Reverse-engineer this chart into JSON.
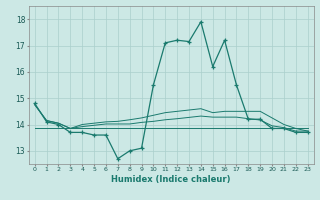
{
  "xlabel": "Humidex (Indice chaleur)",
  "background_color": "#cce8e5",
  "grid_color": "#aacfcc",
  "line_color": "#1a7a6e",
  "x": [
    0,
    1,
    2,
    3,
    4,
    5,
    6,
    7,
    8,
    9,
    10,
    11,
    12,
    13,
    14,
    15,
    16,
    17,
    18,
    19,
    20,
    21,
    22,
    23
  ],
  "main_line": [
    14.8,
    14.1,
    14.0,
    13.7,
    13.7,
    13.6,
    13.6,
    12.7,
    13.0,
    13.1,
    15.5,
    17.1,
    17.2,
    17.15,
    17.9,
    16.2,
    17.2,
    15.5,
    14.2,
    14.2,
    13.85,
    13.85,
    13.7,
    13.7
  ],
  "upper_line": [
    14.75,
    14.15,
    14.05,
    13.85,
    14.0,
    14.05,
    14.1,
    14.12,
    14.18,
    14.25,
    14.35,
    14.45,
    14.5,
    14.55,
    14.6,
    14.45,
    14.5,
    14.5,
    14.5,
    14.5,
    14.25,
    14.0,
    13.85,
    13.75
  ],
  "lower_line": [
    14.75,
    14.15,
    14.05,
    13.85,
    13.92,
    13.97,
    14.02,
    14.02,
    14.02,
    14.08,
    14.12,
    14.18,
    14.22,
    14.27,
    14.32,
    14.28,
    14.28,
    14.28,
    14.22,
    14.17,
    13.95,
    13.88,
    13.75,
    13.75
  ],
  "trend_line": [
    13.88,
    13.88,
    13.88,
    13.88,
    13.88,
    13.88,
    13.88,
    13.88,
    13.88,
    13.88,
    13.88,
    13.88,
    13.88,
    13.88,
    13.88,
    13.88,
    13.88,
    13.88,
    13.88,
    13.88,
    13.88,
    13.88,
    13.88,
    13.88
  ],
  "ylim": [
    12.5,
    18.5
  ],
  "yticks": [
    13,
    14,
    15,
    16,
    17,
    18
  ],
  "xlim": [
    -0.5,
    23.5
  ]
}
